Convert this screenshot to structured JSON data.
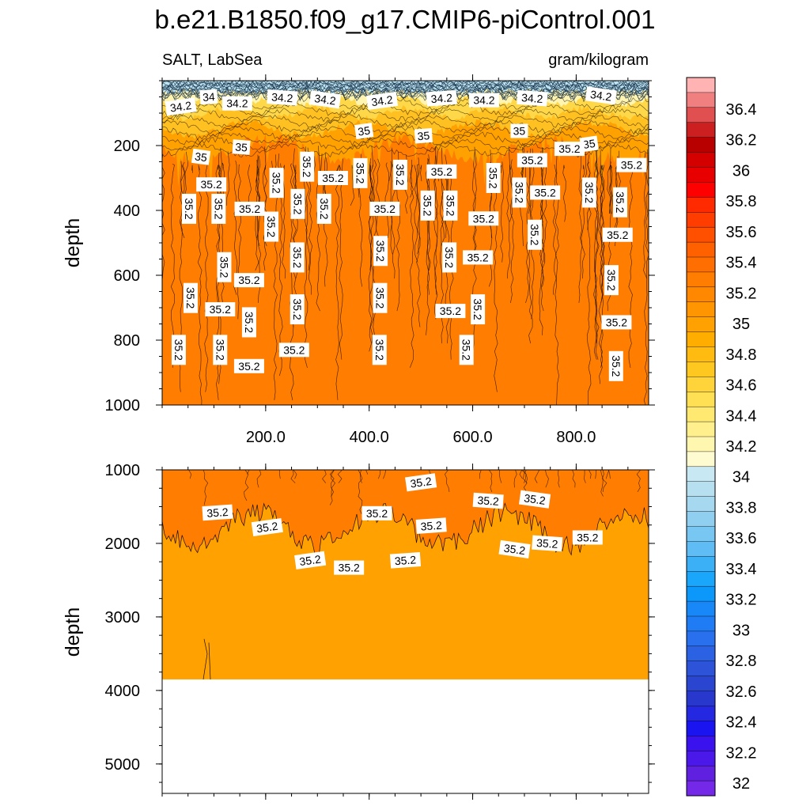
{
  "title": "b.e21.B1850.f09_g17.CMIP6-piControl.001",
  "left_string": "SALT, LabSea",
  "right_string": "gram/kilogram",
  "colors": {
    "surface_dark": "#0f2a44",
    "fresh": "#bde4f0",
    "s342": "#fff4b0",
    "s346": "#ffd84a",
    "s348": "#ffc021",
    "s35": "#ffa100",
    "s352": "#ff7d00",
    "contour": "#1a0e00"
  },
  "chart_data": [
    {
      "type": "contour",
      "panel": "upper",
      "xlim": [
        0,
        940
      ],
      "ylim": [
        1000,
        0
      ],
      "x_ticks": [
        "200.0",
        "400.0",
        "600.0",
        "800.0"
      ],
      "x_tick_values": [
        200,
        400,
        600,
        800
      ],
      "y_ticks": [
        "200",
        "400",
        "600",
        "800",
        "1000"
      ],
      "y_tick_values": [
        200,
        400,
        600,
        800,
        1000
      ],
      "ylabel": "depth",
      "contour_labels": [
        {
          "text": "34.2",
          "x": 36,
          "y": 80
        },
        {
          "text": "34",
          "x": 90,
          "y": 50
        },
        {
          "text": "34.2",
          "x": 145,
          "y": 70
        },
        {
          "text": "34.2",
          "x": 232,
          "y": 52
        },
        {
          "text": "34.2",
          "x": 315,
          "y": 58
        },
        {
          "text": "34.2",
          "x": 425,
          "y": 62
        },
        {
          "text": "34.2",
          "x": 540,
          "y": 54
        },
        {
          "text": "34.2",
          "x": 622,
          "y": 60
        },
        {
          "text": "34.2",
          "x": 715,
          "y": 54
        },
        {
          "text": "34.2",
          "x": 848,
          "y": 46
        },
        {
          "text": "35",
          "x": 390,
          "y": 155
        },
        {
          "text": "35",
          "x": 505,
          "y": 170
        },
        {
          "text": "35",
          "x": 690,
          "y": 155
        },
        {
          "text": "35",
          "x": 153,
          "y": 205
        },
        {
          "text": "35",
          "x": 75,
          "y": 235
        },
        {
          "text": "35",
          "x": 825,
          "y": 195
        },
        {
          "text": "35.2",
          "x": 787,
          "y": 210
        },
        {
          "text": "35.2",
          "x": 715,
          "y": 245
        },
        {
          "text": "35.2",
          "x": 907,
          "y": 260
        },
        {
          "text": "35.2",
          "x": 280,
          "y": 265
        },
        {
          "text": "35.2",
          "x": 221,
          "y": 315
        },
        {
          "text": "35.2",
          "x": 330,
          "y": 300
        },
        {
          "text": "35.2",
          "x": 383,
          "y": 285
        },
        {
          "text": "35.2",
          "x": 460,
          "y": 290
        },
        {
          "text": "35.2",
          "x": 540,
          "y": 280
        },
        {
          "text": "35.2",
          "x": 640,
          "y": 300
        },
        {
          "text": "35.2",
          "x": 690,
          "y": 345
        },
        {
          "text": "35.2",
          "x": 740,
          "y": 345
        },
        {
          "text": "35.2",
          "x": 825,
          "y": 345
        },
        {
          "text": "35.2",
          "x": 885,
          "y": 375
        },
        {
          "text": "35.2",
          "x": 95,
          "y": 320
        },
        {
          "text": "35.2",
          "x": 52,
          "y": 395
        },
        {
          "text": "35.2",
          "x": 109,
          "y": 395
        },
        {
          "text": "35.2",
          "x": 169,
          "y": 395
        },
        {
          "text": "35.2",
          "x": 262,
          "y": 380
        },
        {
          "text": "35.2",
          "x": 313,
          "y": 395
        },
        {
          "text": "35.2",
          "x": 430,
          "y": 395
        },
        {
          "text": "35.2",
          "x": 513,
          "y": 385
        },
        {
          "text": "35.2",
          "x": 557,
          "y": 385
        },
        {
          "text": "35.2",
          "x": 621,
          "y": 425
        },
        {
          "text": "35.2",
          "x": 211,
          "y": 450
        },
        {
          "text": "35.2",
          "x": 720,
          "y": 475
        },
        {
          "text": "35.2",
          "x": 880,
          "y": 475
        },
        {
          "text": "35.2",
          "x": 422,
          "y": 525
        },
        {
          "text": "35.2",
          "x": 555,
          "y": 545
        },
        {
          "text": "35.2",
          "x": 610,
          "y": 545
        },
        {
          "text": "35.2",
          "x": 261,
          "y": 545
        },
        {
          "text": "35.2",
          "x": 120,
          "y": 575
        },
        {
          "text": "35.2",
          "x": 168,
          "y": 615
        },
        {
          "text": "35.2",
          "x": 868,
          "y": 615
        },
        {
          "text": "35.2",
          "x": 55,
          "y": 670
        },
        {
          "text": "35.2",
          "x": 112,
          "y": 705
        },
        {
          "text": "35.2",
          "x": 261,
          "y": 705
        },
        {
          "text": "35.2",
          "x": 421,
          "y": 670
        },
        {
          "text": "35.2",
          "x": 557,
          "y": 710
        },
        {
          "text": "35.2",
          "x": 610,
          "y": 705
        },
        {
          "text": "35.2",
          "x": 168,
          "y": 745
        },
        {
          "text": "35.2",
          "x": 878,
          "y": 745
        },
        {
          "text": "35.2",
          "x": 32,
          "y": 830
        },
        {
          "text": "35.2",
          "x": 112,
          "y": 830
        },
        {
          "text": "35.2",
          "x": 255,
          "y": 830
        },
        {
          "text": "35.2",
          "x": 420,
          "y": 830
        },
        {
          "text": "35.2",
          "x": 588,
          "y": 830
        },
        {
          "text": "35.2",
          "x": 168,
          "y": 880
        },
        {
          "text": "35.2",
          "x": 877,
          "y": 880
        }
      ]
    },
    {
      "type": "contour",
      "panel": "lower",
      "xlim": [
        0,
        940
      ],
      "ylim": [
        5400,
        1000
      ],
      "x_tick_values": [
        200,
        400,
        600,
        800
      ],
      "y_ticks": [
        "1000",
        "2000",
        "3000",
        "4000",
        "5000"
      ],
      "y_tick_values": [
        1000,
        2000,
        3000,
        4000,
        5000
      ],
      "ylabel": "depth",
      "bottom_depth": 3850,
      "contour_labels": [
        {
          "text": "35.2",
          "x": 500,
          "y": 1170
        },
        {
          "text": "35.2",
          "x": 107,
          "y": 1580
        },
        {
          "text": "35.2",
          "x": 415,
          "y": 1590
        },
        {
          "text": "35.2",
          "x": 630,
          "y": 1420
        },
        {
          "text": "35.2",
          "x": 720,
          "y": 1400
        },
        {
          "text": "35.2",
          "x": 203,
          "y": 1780
        },
        {
          "text": "35.2",
          "x": 520,
          "y": 1760
        },
        {
          "text": "35.2",
          "x": 822,
          "y": 1920
        },
        {
          "text": "35.2",
          "x": 744,
          "y": 2000
        },
        {
          "text": "35.2",
          "x": 681,
          "y": 2080
        },
        {
          "text": "35.2",
          "x": 286,
          "y": 2230
        },
        {
          "text": "35.2",
          "x": 470,
          "y": 2230
        },
        {
          "text": "35.2",
          "x": 361,
          "y": 2330
        }
      ]
    }
  ],
  "colorbar": {
    "labels": [
      "36.4",
      "36.2",
      "36",
      "35.8",
      "35.6",
      "35.4",
      "35.2",
      "35",
      "34.8",
      "34.6",
      "34.4",
      "34.2",
      "34",
      "33.8",
      "33.6",
      "33.4",
      "33.2",
      "33",
      "32.8",
      "32.6",
      "32.4",
      "32.2",
      "32"
    ],
    "colors": [
      "#ffb3b3",
      "#f08080",
      "#e05050",
      "#cc2020",
      "#b80000",
      "#d40000",
      "#e80000",
      "#ff0000",
      "#ff2a00",
      "#ff3d00",
      "#ff5000",
      "#ff6000",
      "#ff6e00",
      "#ff7d00",
      "#ff8800",
      "#ff9500",
      "#ffa100",
      "#ffae00",
      "#ffbb10",
      "#ffc821",
      "#ffd43a",
      "#ffe055",
      "#ffe970",
      "#fff08d",
      "#fff6b0",
      "#fffbd0",
      "#c8e8f4",
      "#b6e0f0",
      "#a6d8f0",
      "#90cff0",
      "#78c6f2",
      "#60bcf4",
      "#3cb0f6",
      "#1aa6fa",
      "#0c98fa",
      "#1888f8",
      "#1f7cf4",
      "#2870ee",
      "#2b62e4",
      "#2d54d8",
      "#2a46d0",
      "#2838cc",
      "#2428e0",
      "#1a14f0",
      "#3a12ee",
      "#4a18e8",
      "#6020e0",
      "#7428e8"
    ]
  }
}
